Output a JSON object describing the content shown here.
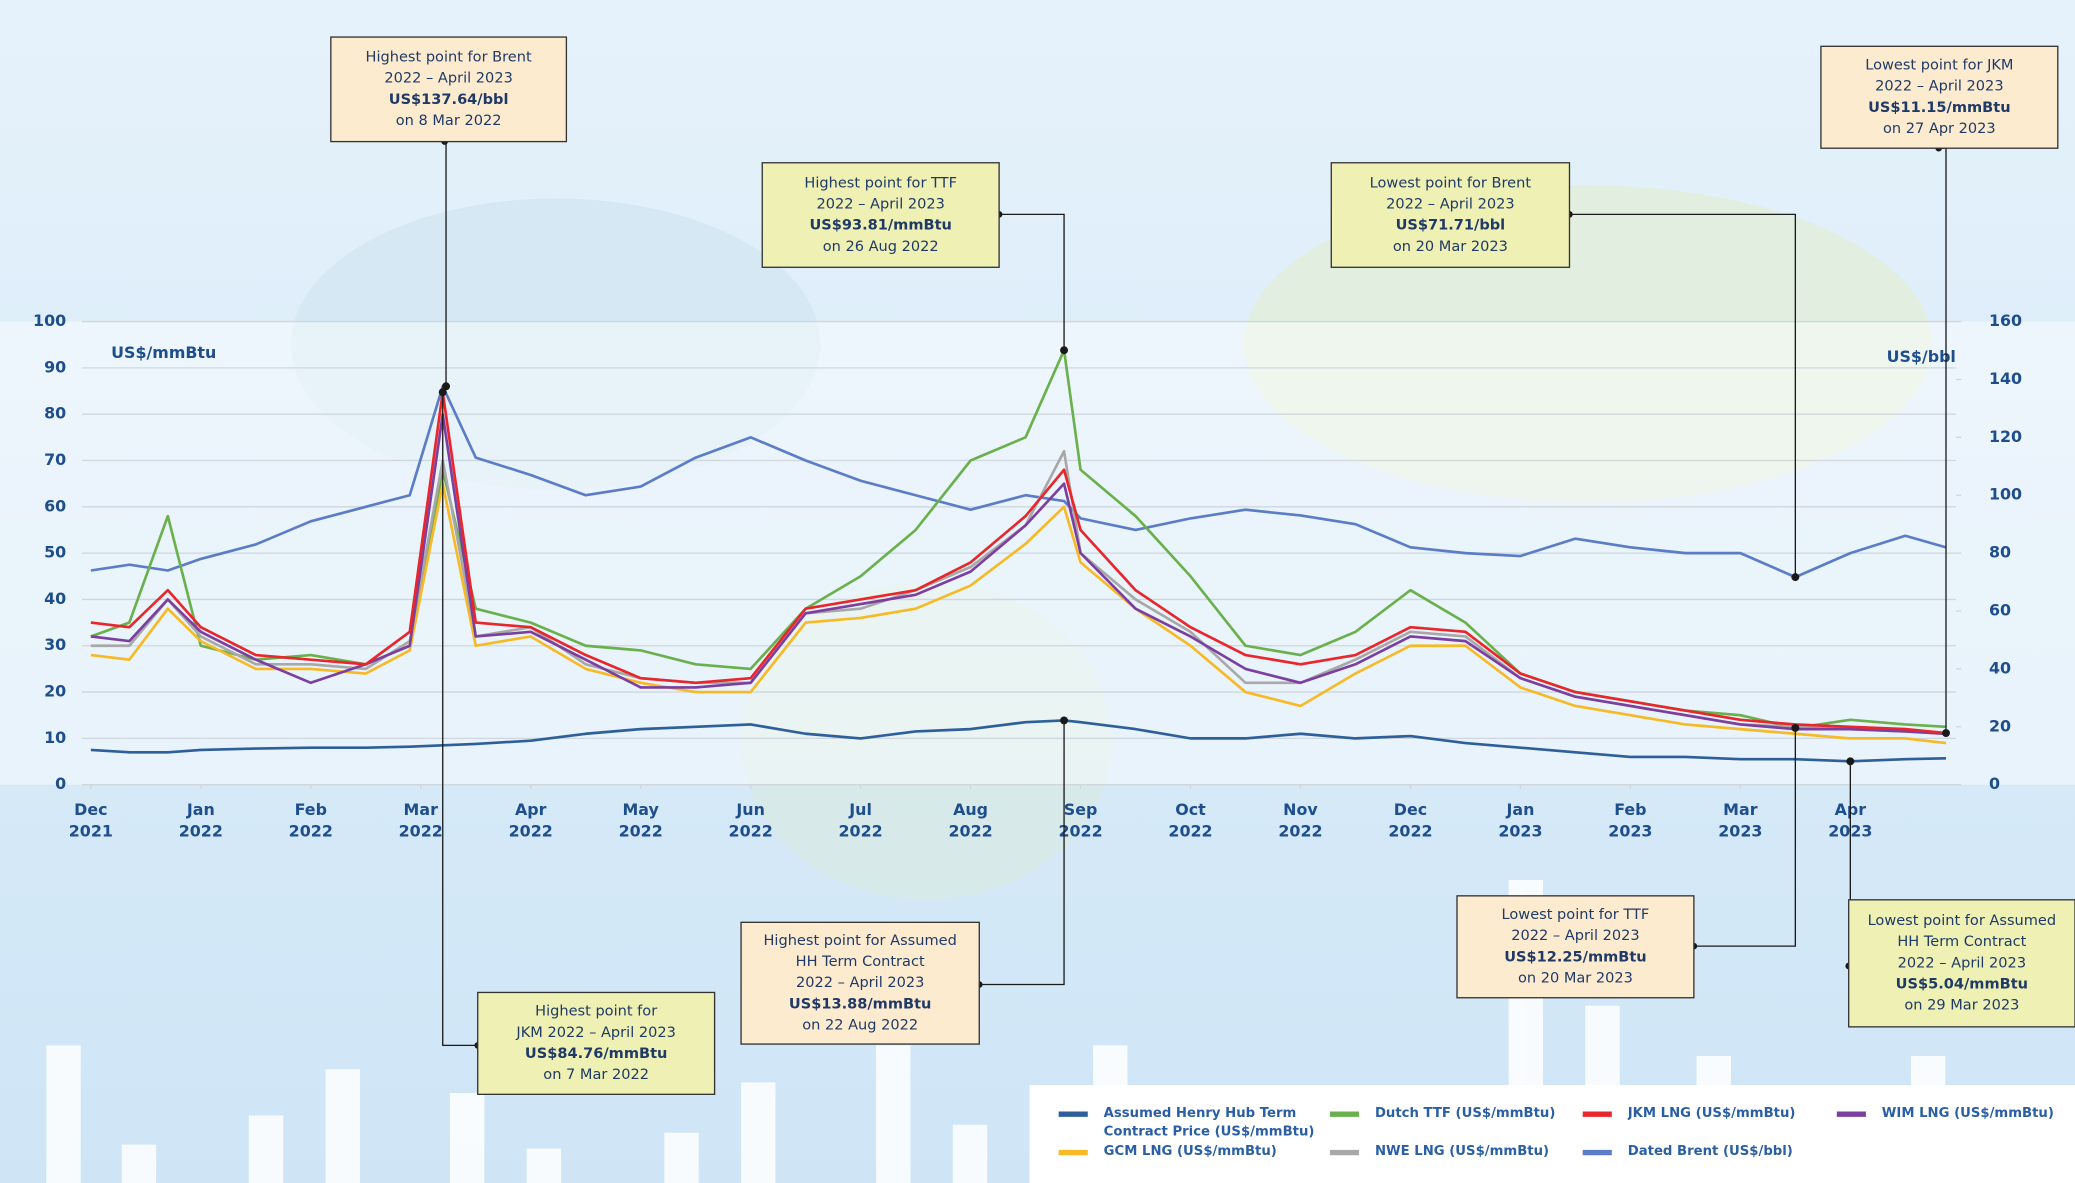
{
  "chart_data": {
    "type": "line",
    "y_axis_label": "US$/mmBtu",
    "y2_axis_label": "US$/bbl",
    "xlim": [
      -0.08,
      16.96
    ],
    "xticks": [
      {
        "value": 0,
        "label": "Dec 2021"
      },
      {
        "value": 1,
        "label": "Jan 2022"
      },
      {
        "value": 2,
        "label": "Feb 2022"
      },
      {
        "value": 3,
        "label": "Mar 2022"
      },
      {
        "value": 4,
        "label": "Apr 2022"
      },
      {
        "value": 5,
        "label": "May 2022"
      },
      {
        "value": 6,
        "label": "Jun 2022"
      },
      {
        "value": 7,
        "label": "Jul 2022"
      },
      {
        "value": 8,
        "label": "Aug 2022"
      },
      {
        "value": 9,
        "label": "Sep 2022"
      },
      {
        "value": 10,
        "label": "Oct 2022"
      },
      {
        "value": 11,
        "label": "Nov 2022"
      },
      {
        "value": 12,
        "label": "Dec 2022"
      },
      {
        "value": 13,
        "label": "Jan 2023"
      },
      {
        "value": 14,
        "label": "Feb 2023"
      },
      {
        "value": 15,
        "label": "Mar 2023"
      },
      {
        "value": 16,
        "label": "Apr 2023"
      }
    ],
    "ylim": [
      0,
      100
    ],
    "yticks": [
      0,
      10,
      20,
      30,
      40,
      50,
      60,
      70,
      80,
      90,
      100
    ],
    "y2lim": [
      0,
      160
    ],
    "y2ticks": [
      0,
      20,
      40,
      60,
      80,
      100,
      120,
      140,
      160
    ],
    "grid": true,
    "legend": "bottom-right",
    "x": [
      0,
      0.35,
      0.7,
      1,
      1.5,
      2,
      2.5,
      2.9,
      3.2,
      3.5,
      4,
      4.5,
      5,
      5.5,
      6,
      6.5,
      7,
      7.5,
      8,
      8.5,
      8.85,
      9,
      9.5,
      10,
      10.5,
      11,
      11.5,
      12,
      12.5,
      13,
      13.5,
      14,
      14.5,
      15,
      15.5,
      16,
      16.5,
      16.87
    ],
    "series": [
      {
        "name": "Dated Brent (US$/bbl)",
        "color": "#5b7cc6",
        "axis": "y2",
        "values": [
          74,
          76,
          74,
          78,
          83,
          91,
          96,
          100,
          137.64,
          113,
          107,
          100,
          103,
          113,
          120,
          112,
          105,
          100,
          95,
          100,
          98,
          92,
          88,
          92,
          95,
          93,
          90,
          82,
          80,
          79,
          85,
          82,
          80,
          80,
          71.71,
          80,
          86,
          82
        ]
      },
      {
        "name": "Assumed Henry Hub Term Contract Price (US$/mmBtu)",
        "color": "#2e5f9a",
        "values": [
          7.5,
          7,
          7,
          7.5,
          7.8,
          8,
          8,
          8.2,
          8.5,
          8.8,
          9.5,
          11,
          12,
          12.5,
          13,
          11,
          10,
          11.5,
          12,
          13.5,
          13.88,
          13.5,
          12,
          10,
          10,
          11,
          10,
          10.5,
          9,
          8,
          7,
          6,
          6,
          5.5,
          5.5,
          5.04,
          5.5,
          5.7
        ]
      },
      {
        "name": "Dutch TTF (US$/mmBtu)",
        "color": "#6ab04c",
        "values": [
          32,
          35,
          58,
          30,
          27,
          28,
          26,
          30,
          68,
          38,
          35,
          30,
          29,
          26,
          25,
          38,
          45,
          55,
          70,
          75,
          93.81,
          68,
          58,
          45,
          30,
          28,
          33,
          42,
          35,
          24,
          20,
          18,
          16,
          15,
          12.25,
          14,
          13,
          12.5
        ]
      },
      {
        "name": "GCM LNG (US$/mmBtu)",
        "color": "#f7b924",
        "values": [
          28,
          27,
          38,
          31,
          25,
          25,
          24,
          29,
          65,
          30,
          32,
          25,
          22,
          20,
          20,
          35,
          36,
          38,
          43,
          52,
          60,
          48,
          38,
          30,
          20,
          17,
          24,
          30,
          30,
          21,
          17,
          15,
          13,
          12,
          11,
          10,
          10,
          9
        ]
      },
      {
        "name": "NWE LNG (US$/mmBtu)",
        "color": "#a8a8a8",
        "values": [
          30,
          30,
          40,
          32,
          26,
          26,
          25,
          31,
          70,
          32,
          34,
          26,
          23,
          22,
          22,
          37,
          38,
          42,
          47,
          56,
          72,
          50,
          40,
          33,
          22,
          22,
          27,
          33,
          32,
          23,
          19,
          17,
          15,
          13,
          12.5,
          12,
          11.5,
          11
        ]
      },
      {
        "name": "WIM LNG (US$/mmBtu)",
        "color": "#7b3fa0",
        "values": [
          32,
          31,
          40,
          33,
          27,
          22,
          26,
          30,
          80,
          32,
          33,
          27,
          21,
          21,
          22,
          37,
          39,
          41,
          46,
          56,
          65,
          50,
          38,
          32,
          25,
          22,
          26,
          32,
          31,
          23,
          19,
          17,
          15,
          13,
          12,
          12,
          11.5,
          11
        ]
      },
      {
        "name": "JKM LNG (US$/mmBtu)",
        "color": "#e8262b",
        "values": [
          35,
          34,
          42,
          34,
          28,
          27,
          26,
          33,
          84.76,
          35,
          34,
          28,
          23,
          22,
          23,
          38,
          40,
          42,
          48,
          58,
          68,
          55,
          42,
          34,
          28,
          26,
          28,
          34,
          33,
          24,
          20,
          18,
          16,
          14,
          13,
          12.5,
          12,
          11.15
        ]
      }
    ],
    "annotations": [
      {
        "lines": [
          "Highest point for Brent",
          "2022 – April 2023"
        ],
        "value": "US$137.64/bbl",
        "date": "on 8 Mar 2022",
        "x": 3.23,
        "y": 137.64,
        "axis": "y2"
      },
      {
        "lines": [
          "Highest point for",
          "JKM 2022 – April 2023"
        ],
        "value": "US$84.76/mmBtu",
        "date": "on 7 Mar 2022",
        "x": 3.2,
        "y": 84.76
      },
      {
        "lines": [
          "Highest point for TTF",
          "2022 – April 2023"
        ],
        "value": "US$93.81/mmBtu",
        "date": "on 26 Aug 2022",
        "x": 8.85,
        "y": 93.81
      },
      {
        "lines": [
          "Lowest point for Brent",
          "2022 – April 2023"
        ],
        "value": "US$71.71/bbl",
        "date": "on 20 Mar 2023",
        "x": 15.5,
        "y": 71.71,
        "axis": "y2"
      },
      {
        "lines": [
          "Lowest point for JKM",
          "2022 – April 2023"
        ],
        "value": "US$11.15/mmBtu",
        "date": "on 27 Apr 2023",
        "x": 16.87,
        "y": 11.15
      },
      {
        "lines": [
          "Highest point for Assumed",
          "HH Term Contract",
          "2022 – April 2023"
        ],
        "value": "US$13.88/mmBtu",
        "date": "on 22 Aug 2022",
        "x": 8.85,
        "y": 13.88
      },
      {
        "lines": [
          "Lowest point for TTF",
          "2022 – April 2023"
        ],
        "value": "US$12.25/mmBtu",
        "date": "on 20 Mar 2023",
        "x": 15.5,
        "y": 12.25
      },
      {
        "lines": [
          "Lowest point for Assumed",
          "HH Term Contract",
          "2022 – April 2023"
        ],
        "value": "US$5.04/mmBtu",
        "date": "on 29 Mar 2023",
        "x": 16,
        "y": 5.04
      }
    ]
  }
}
